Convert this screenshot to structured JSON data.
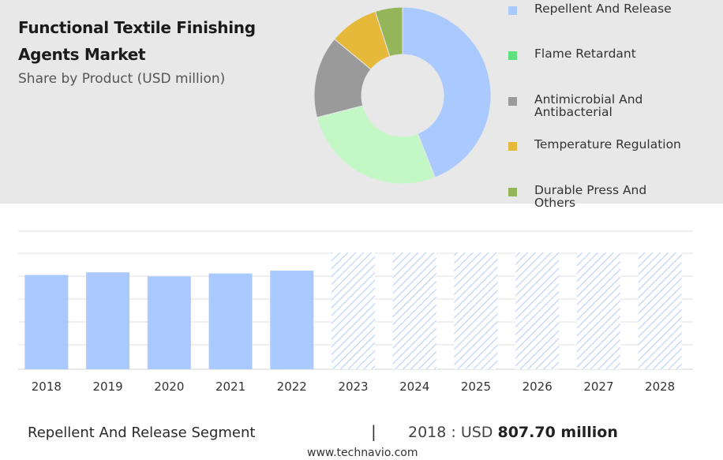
{
  "header": {
    "title_line1": "Functional Textile Finishing",
    "title_line2": "Agents Market",
    "subtitle": "Share by Product (USD million)"
  },
  "legend": [
    {
      "label_lines": [
        "Repellent And Release"
      ],
      "color": "#a9c9ff"
    },
    {
      "label_lines": [
        "Flame Retardant"
      ],
      "color": "#5ee07c"
    },
    {
      "label_lines": [
        "Antimicrobial And",
        "Antibacterial"
      ],
      "color": "#9a9a9a"
    },
    {
      "label_lines": [
        "Temperature Regulation"
      ],
      "color": "#e6b93a"
    },
    {
      "label_lines": [
        "Durable Press And",
        "Others"
      ],
      "color": "#95b55a"
    }
  ],
  "chart_data": [
    {
      "type": "pie",
      "categories": [
        "Repellent And Release",
        "Flame Retardant",
        "Antimicrobial And Antibacterial",
        "Temperature Regulation",
        "Durable Press And Others"
      ],
      "values": [
        44,
        27,
        15,
        9,
        5
      ],
      "colors": [
        "#a9c9ff",
        "#c4f7c6",
        "#9a9a9a",
        "#e6b93a",
        "#95b55a"
      ]
    },
    {
      "type": "bar",
      "categories": [
        "2018",
        "2019",
        "2020",
        "2021",
        "2022",
        "2023",
        "2024",
        "2025",
        "2026",
        "2027",
        "2028"
      ],
      "values": [
        807.7,
        830,
        795,
        820,
        845,
        null,
        null,
        null,
        null,
        null,
        null
      ],
      "forecast_categories": [
        "2023",
        "2024",
        "2025",
        "2026",
        "2027",
        "2028"
      ],
      "bar_color": "#a9c9ff",
      "ylim": [
        0,
        1000
      ],
      "grid": true
    }
  ],
  "footer": {
    "segment_label": "Repellent And Release Segment",
    "separator": "|",
    "value_prefix": "2018 : USD",
    "value_bold": "807.70 million",
    "website": "www.technavio.com"
  }
}
